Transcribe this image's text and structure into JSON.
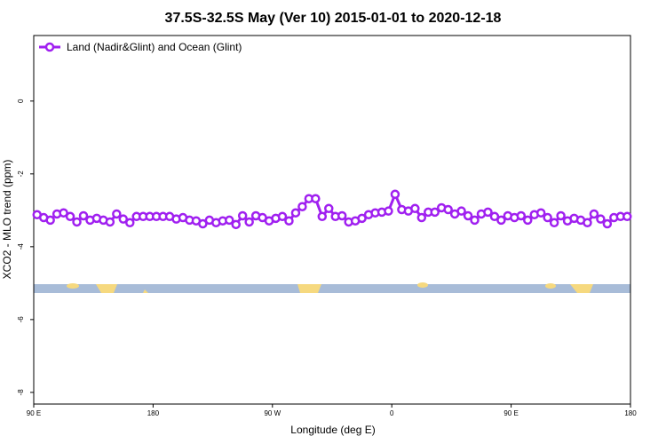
{
  "chart_data": {
    "type": "line",
    "title": "37.5S-32.5S May (Ver 10)   2015-01-01 to 2020-12-18",
    "x_label": "Longitude (deg E)",
    "y_label": "XCO2 - MLO trend (ppm)",
    "x": [
      92.5,
      97.5,
      102.5,
      107.5,
      112.5,
      117.5,
      122.5,
      127.5,
      132.5,
      137.5,
      142.5,
      147.5,
      152.5,
      157.5,
      162.5,
      167.5,
      172.5,
      177.5,
      182.5,
      187.5,
      192.5,
      197.5,
      202.5,
      207.5,
      212.5,
      217.5,
      222.5,
      227.5,
      232.5,
      237.5,
      242.5,
      247.5,
      252.5,
      257.5,
      262.5,
      267.5,
      272.5,
      277.5,
      282.5,
      287.5,
      292.5,
      297.5,
      302.5,
      307.5,
      312.5,
      317.5,
      322.5,
      327.5,
      332.5,
      337.5,
      342.5,
      347.5,
      352.5,
      357.5,
      362.5,
      367.5,
      372.5,
      377.5,
      382.5,
      387.5,
      392.5,
      397.5,
      402.5,
      407.5,
      412.5,
      417.5,
      422.5,
      427.5,
      432.5,
      437.5,
      442.5,
      447.5,
      452.5,
      457.5,
      462.5,
      467.5,
      472.5,
      477.5,
      482.5,
      487.5,
      492.5,
      497.5,
      502.5,
      507.5,
      512.5,
      517.5,
      522.5,
      527.5,
      532.5,
      537.5
    ],
    "series": [
      {
        "name": "Land (Nadir&Glint) and Ocean (Glint)",
        "color": "#a020f0",
        "values": [
          -3.12,
          -3.2,
          -3.27,
          -3.1,
          -3.07,
          -3.17,
          -3.32,
          -3.15,
          -3.27,
          -3.22,
          -3.27,
          -3.32,
          -3.1,
          -3.24,
          -3.34,
          -3.17,
          -3.17,
          -3.17,
          -3.17,
          -3.17,
          -3.17,
          -3.24,
          -3.2,
          -3.27,
          -3.29,
          -3.37,
          -3.27,
          -3.34,
          -3.29,
          -3.27,
          -3.39,
          -3.15,
          -3.32,
          -3.15,
          -3.2,
          -3.29,
          -3.22,
          -3.17,
          -3.29,
          -3.07,
          -2.9,
          -2.68,
          -2.68,
          -3.17,
          -2.95,
          -3.17,
          -3.15,
          -3.32,
          -3.29,
          -3.22,
          -3.12,
          -3.07,
          -3.05,
          -3.02,
          -2.56,
          -2.98,
          -3.02,
          -2.95,
          -3.2,
          -3.05,
          -3.05,
          -2.93,
          -2.98,
          -3.1,
          -3.02,
          -3.15,
          -3.27,
          -3.1,
          -3.05,
          -3.17,
          -3.27,
          -3.15,
          -3.2,
          -3.15,
          -3.27,
          -3.12,
          -3.07,
          -3.2,
          -3.34,
          -3.15,
          -3.29,
          -3.22,
          -3.27,
          -3.34,
          -3.1,
          -3.24,
          -3.37,
          -3.2,
          -3.17,
          -3.17
        ]
      }
    ],
    "xlim": [
      90,
      540
    ],
    "xticks": [
      {
        "value": 90,
        "label": "90 E"
      },
      {
        "value": 180,
        "label": "180"
      },
      {
        "value": 270,
        "label": "90 W"
      },
      {
        "value": 360,
        "label": "0"
      },
      {
        "value": 450,
        "label": "90 E"
      },
      {
        "value": 540,
        "label": "180"
      }
    ],
    "ylim": [
      -8.32,
      1.8
    ],
    "yticks": [
      0,
      -2,
      -4,
      -6,
      -8
    ],
    "legend": "top-left"
  }
}
